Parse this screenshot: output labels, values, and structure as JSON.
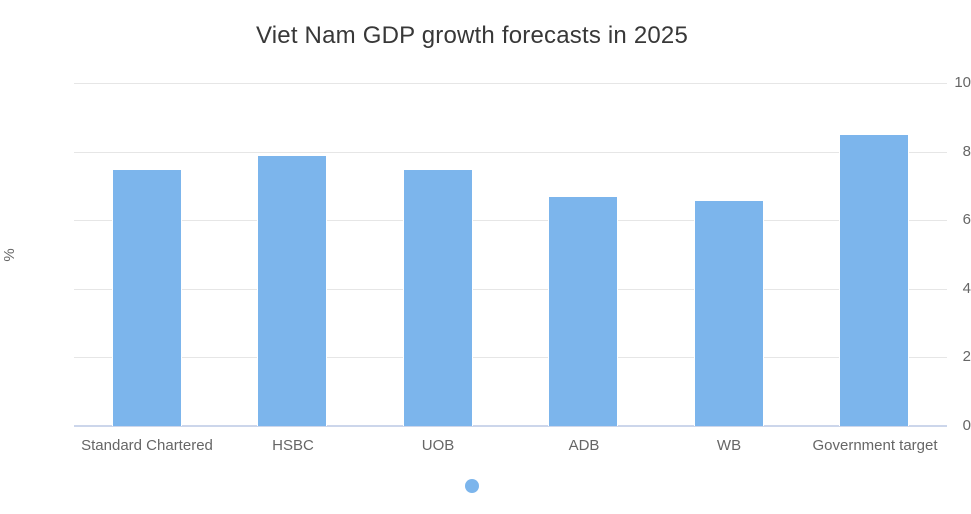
{
  "chart_data": {
    "type": "bar",
    "title": "Viet Nam GDP growth forecasts in 2025",
    "categories": [
      "Standard Chartered",
      "HSBC",
      "UOB",
      "ADB",
      "WB",
      "Government target"
    ],
    "values": [
      7.5,
      7.9,
      7.5,
      6.7,
      6.6,
      8.5
    ],
    "xlabel": "",
    "ylabel": "%",
    "ylim": [
      0,
      10
    ],
    "yticks": [
      0,
      2,
      4,
      6,
      8,
      10
    ],
    "grid": true,
    "legend": {
      "position": "bottom",
      "marker": "circle-icon",
      "label": ""
    },
    "colors": {
      "bar_fill": "#7cb5ec",
      "bar_border": "#ffffff",
      "gridline": "#e6e6e6",
      "axis_line": "#ccd6eb",
      "tick_text": "#666666",
      "title_text": "#383838"
    }
  }
}
